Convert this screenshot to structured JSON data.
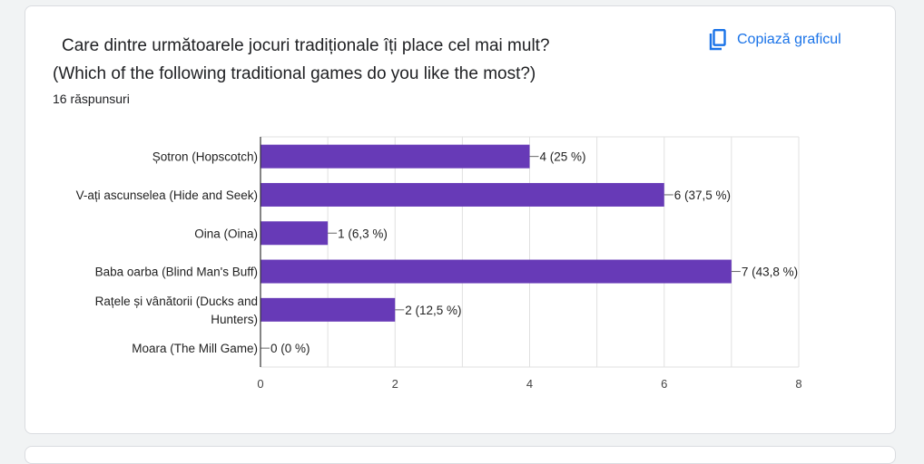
{
  "question": {
    "title_line1": "Care dintre următoarele jocuri tradiționale îți place cel mai mult?",
    "title_line2": "(Which of the following traditional games do you like the most?)",
    "responses": "16 răspunsuri"
  },
  "copy_button": {
    "label": "Copiază graficul",
    "icon": "copy-icon"
  },
  "colors": {
    "bar": "#673ab7",
    "grid": "#e0e0e0",
    "axis": "#333333",
    "text": "#222222",
    "link": "#1a73e8"
  },
  "chart_data": {
    "type": "bar",
    "orientation": "horizontal",
    "categories": [
      [
        "Șotron (Hopscotch)"
      ],
      [
        "V-ați ascunselea (Hide and Seek)"
      ],
      [
        "Oina (Oina)"
      ],
      [
        "Baba oarba (Blind Man's Buff)"
      ],
      [
        "Rațele și vânătorii (Ducks and",
        "Hunters)"
      ],
      [
        "Moara (The Mill Game)"
      ]
    ],
    "values": [
      4,
      6,
      1,
      7,
      2,
      0
    ],
    "data_labels": [
      "4 (25 %)",
      "6 (37,5 %)",
      "1 (6,3 %)",
      "7 (43,8 %)",
      "2 (12,5 %)",
      "0 (0 %)"
    ],
    "xlim": [
      0,
      8
    ],
    "x_ticks": [
      "0",
      "2",
      "4",
      "6",
      "8"
    ],
    "grid": true
  }
}
